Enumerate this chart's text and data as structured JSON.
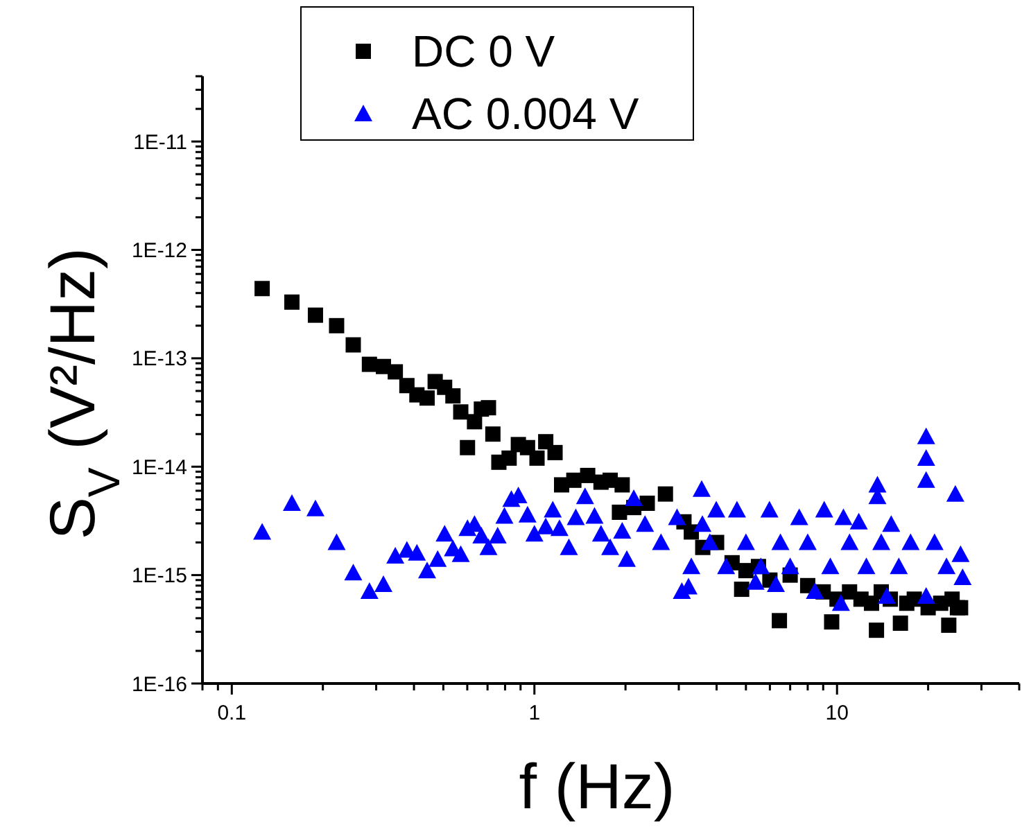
{
  "chart_data": {
    "type": "scatter",
    "xlabel": "f (Hz)",
    "ylabel": "S$_{V}$ (V²/Hz)",
    "log": "xy",
    "legend": "top",
    "grid": false,
    "xlim": [
      0.08,
      40
    ],
    "ylim": [
      1e-16,
      4e-11
    ],
    "xticks": [
      {
        "value": 0.08,
        "label": null
      },
      {
        "value": 0.09,
        "label": null
      },
      0.1,
      {
        "value": 0.2,
        "label": null
      },
      {
        "value": 0.3,
        "label": null
      },
      {
        "value": 0.4,
        "label": null
      },
      {
        "value": 0.5,
        "label": null
      },
      {
        "value": 0.6,
        "label": null
      },
      {
        "value": 0.7,
        "label": null
      },
      {
        "value": 0.8,
        "label": null
      },
      {
        "value": 0.9,
        "label": null
      },
      1,
      {
        "value": 2,
        "label": null
      },
      {
        "value": 3,
        "label": null
      },
      {
        "value": 4,
        "label": null
      },
      {
        "value": 5,
        "label": null
      },
      {
        "value": 6,
        "label": null
      },
      {
        "value": 7,
        "label": null
      },
      {
        "value": 8,
        "label": null
      },
      {
        "value": 9,
        "label": null
      },
      10,
      {
        "value": 20,
        "label": null
      },
      {
        "value": 30,
        "label": null
      },
      {
        "value": 40,
        "label": null
      }
    ],
    "yticks": [
      {
        "value": 1e-16,
        "label": "1E-16"
      },
      {
        "value": 2e-16,
        "label": null
      },
      {
        "value": 3e-16,
        "label": null
      },
      {
        "value": 4e-16,
        "label": null
      },
      {
        "value": 5e-16,
        "label": null
      },
      {
        "value": 6e-16,
        "label": null
      },
      {
        "value": 7e-16,
        "label": null
      },
      {
        "value": 8e-16,
        "label": null
      },
      {
        "value": 9e-16,
        "label": null
      },
      {
        "value": 1e-15,
        "label": "1E-15"
      },
      {
        "value": 2e-15,
        "label": null
      },
      {
        "value": 3e-15,
        "label": null
      },
      {
        "value": 4e-15,
        "label": null
      },
      {
        "value": 5e-15,
        "label": null
      },
      {
        "value": 6e-15,
        "label": null
      },
      {
        "value": 7e-15,
        "label": null
      },
      {
        "value": 8e-15,
        "label": null
      },
      {
        "value": 9e-15,
        "label": null
      },
      {
        "value": 1e-14,
        "label": "1E-14"
      },
      {
        "value": 2e-14,
        "label": null
      },
      {
        "value": 3e-14,
        "label": null
      },
      {
        "value": 4e-14,
        "label": null
      },
      {
        "value": 5e-14,
        "label": null
      },
      {
        "value": 6e-14,
        "label": null
      },
      {
        "value": 7e-14,
        "label": null
      },
      {
        "value": 8e-14,
        "label": null
      },
      {
        "value": 9e-14,
        "label": null
      },
      {
        "value": 1e-13,
        "label": "1E-13"
      },
      {
        "value": 2e-13,
        "label": null
      },
      {
        "value": 3e-13,
        "label": null
      },
      {
        "value": 4e-13,
        "label": null
      },
      {
        "value": 5e-13,
        "label": null
      },
      {
        "value": 6e-13,
        "label": null
      },
      {
        "value": 7e-13,
        "label": null
      },
      {
        "value": 8e-13,
        "label": null
      },
      {
        "value": 9e-13,
        "label": null
      },
      {
        "value": 1e-12,
        "label": "1E-12"
      },
      {
        "value": 2e-12,
        "label": null
      },
      {
        "value": 3e-12,
        "label": null
      },
      {
        "value": 4e-12,
        "label": null
      },
      {
        "value": 5e-12,
        "label": null
      },
      {
        "value": 6e-12,
        "label": null
      },
      {
        "value": 7e-12,
        "label": null
      },
      {
        "value": 8e-12,
        "label": null
      },
      {
        "value": 9e-12,
        "label": null
      },
      {
        "value": 1e-11,
        "label": "1E-11"
      },
      {
        "value": 2e-11,
        "label": null
      },
      {
        "value": 3e-11,
        "label": null
      },
      {
        "value": 4e-11,
        "label": null
      }
    ],
    "series": [
      {
        "name": "DC 0 V",
        "color": "#000000",
        "marker": "square",
        "x": [
          0.126,
          0.158,
          0.189,
          0.222,
          0.252,
          0.285,
          0.317,
          0.347,
          0.379,
          0.409,
          0.442,
          0.47,
          0.505,
          0.538,
          0.571,
          0.601,
          0.634,
          0.668,
          0.705,
          0.729,
          0.763,
          0.825,
          0.885,
          0.949,
          1.02,
          1.09,
          1.17,
          1.23,
          1.35,
          1.5,
          1.66,
          1.78,
          1.95,
          1.91,
          2.13,
          2.36,
          2.71,
          3.12,
          3.3,
          3.6,
          4.0,
          4.5,
          4.84,
          5.0,
          5.5,
          6.0,
          6.45,
          7.0,
          8.0,
          9.0,
          9.6,
          10,
          11,
          12,
          13,
          13.5,
          14,
          15,
          16.2,
          17,
          18,
          20,
          22,
          23.4,
          24,
          25,
          25.6
        ],
        "values": [
          4.4e-13,
          3.3e-13,
          2.5e-13,
          2e-13,
          1.33e-13,
          8.8e-14,
          8.4e-14,
          7.5e-14,
          5.6e-14,
          4.6e-14,
          4.3e-14,
          6.1e-14,
          5.4e-14,
          4.5e-14,
          3.2e-14,
          1.5e-14,
          2.6e-14,
          3.4e-14,
          3.5e-14,
          2e-14,
          1.1e-14,
          1.2e-14,
          1.6e-14,
          1.5e-14,
          1.2e-14,
          1.7e-14,
          1.35e-14,
          6.8e-15,
          7.5e-15,
          8.3e-15,
          7.2e-15,
          7.5e-15,
          6.8e-15,
          3.8e-15,
          4.2e-15,
          4.6e-15,
          5.6e-15,
          3.1e-15,
          2.5e-15,
          1.8e-15,
          2e-15,
          1.3e-15,
          7.4e-16,
          1.1e-15,
          1.2e-15,
          9e-16,
          3.8e-16,
          1e-15,
          8e-16,
          7e-16,
          3.7e-16,
          6e-16,
          7e-16,
          6e-16,
          5.5e-16,
          3.1e-16,
          7e-16,
          6e-16,
          3.6e-16,
          5.5e-16,
          6e-16,
          5e-16,
          5.5e-16,
          3.45e-16,
          6e-16,
          5e-16,
          5e-16
        ]
      },
      {
        "name": "AC 0.004 V",
        "color": "#0000ff",
        "marker": "triangle",
        "x": [
          0.126,
          0.158,
          0.189,
          0.222,
          0.252,
          0.285,
          0.317,
          0.347,
          0.379,
          0.409,
          0.442,
          0.479,
          0.505,
          0.538,
          0.571,
          0.601,
          0.634,
          0.668,
          0.705,
          0.756,
          0.796,
          0.839,
          0.885,
          0.949,
          1.0,
          1.09,
          1.15,
          1.21,
          1.3,
          1.37,
          1.47,
          1.58,
          1.66,
          1.78,
          1.95,
          2.02,
          2.13,
          2.32,
          2.62,
          2.96,
          3.07,
          3.23,
          3.3,
          3.57,
          3.59,
          3.8,
          3.99,
          4.3,
          4.67,
          5.0,
          5.38,
          5.6,
          5.98,
          6.28,
          6.5,
          7.0,
          7.5,
          8.0,
          8.45,
          9.07,
          9.5,
          10.3,
          10.5,
          11,
          11.8,
          12.5,
          13.6,
          13.6,
          14,
          14.6,
          15.1,
          16,
          17.5,
          19.7,
          19.7,
          19.7,
          19.7,
          21,
          23,
          24.6,
          25.6,
          26.0
        ],
        "values": [
          2.5e-15,
          4.6e-15,
          4.1e-15,
          2e-15,
          1.05e-15,
          7.1e-16,
          8.2e-16,
          1.5e-15,
          1.7e-15,
          1.6e-15,
          1.1e-15,
          1.4e-15,
          2.4e-15,
          1.75e-15,
          1.55e-15,
          2.7e-15,
          2.95e-15,
          2.3e-15,
          1.8e-15,
          2.3e-15,
          3.5e-15,
          5e-15,
          5.4e-15,
          3.6e-15,
          2.4e-15,
          2.8e-15,
          4e-15,
          2.7e-15,
          1.8e-15,
          3.4e-15,
          5.3e-15,
          3.5e-15,
          2.4e-15,
          1.8e-15,
          2.55e-15,
          1.4e-15,
          5.1e-15,
          2.95e-15,
          2e-15,
          3.4e-15,
          7.1e-16,
          7.8e-16,
          1.2e-15,
          6.2e-15,
          2.95e-15,
          2e-15,
          4e-15,
          1.2e-15,
          4e-15,
          2e-15,
          8.6e-16,
          1.2e-15,
          4e-15,
          8.2e-16,
          2e-15,
          1.2e-15,
          3.4e-15,
          2e-15,
          7.1e-16,
          4e-15,
          1.2e-15,
          5.5e-16,
          3.4e-15,
          2e-15,
          3.1e-15,
          1.2e-15,
          6.8e-15,
          5.3e-15,
          2e-15,
          6.4e-16,
          2.95e-15,
          1.2e-15,
          2e-15,
          1.9e-14,
          1.2e-14,
          7.5e-15,
          6.4e-16,
          2e-15,
          1.2e-15,
          5.6e-15,
          1.55e-15,
          9.5e-16
        ]
      }
    ]
  }
}
